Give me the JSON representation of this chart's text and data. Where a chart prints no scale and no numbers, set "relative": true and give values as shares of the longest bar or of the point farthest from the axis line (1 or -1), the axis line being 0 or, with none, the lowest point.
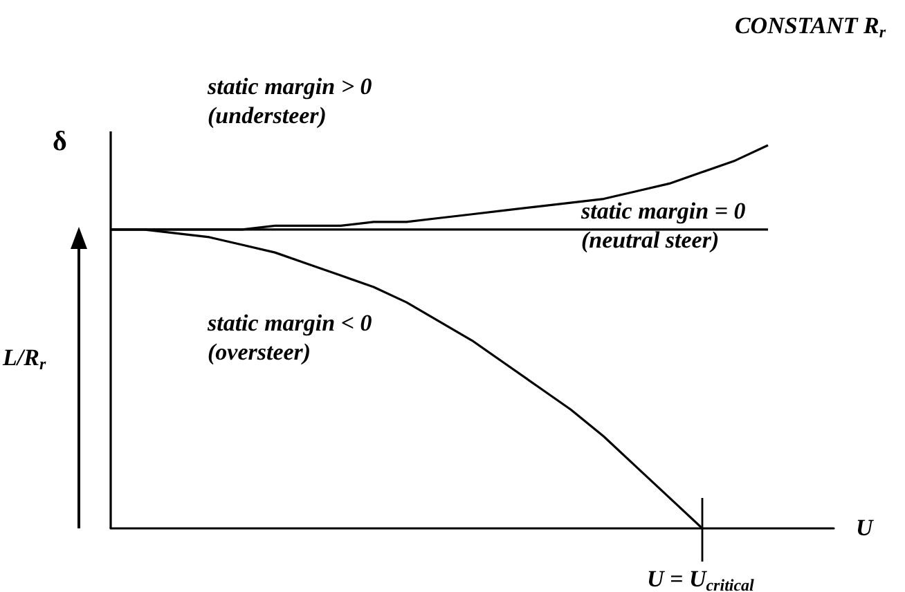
{
  "chart_data": {
    "type": "line",
    "relative": true,
    "title": "CONSTANT R$_{r}$",
    "xlabel": "U",
    "ylabel": "δ",
    "categories": [
      null,
      null,
      null,
      null,
      null,
      null,
      null,
      null,
      null,
      null,
      null,
      null,
      null,
      null,
      null,
      null,
      null,
      null,
      null,
      null,
      null,
      null,
      null
    ],
    "series": [
      {
        "color": "#000000",
        "values": [
          0.78,
          0.78,
          0.78,
          0.78,
          0.78,
          0.79,
          0.79,
          0.79,
          0.8,
          0.8,
          0.81,
          0.82,
          0.83,
          0.84,
          0.85,
          0.86,
          0.88,
          0.9,
          0.93,
          0.96,
          1,
          null,
          null
        ]
      },
      {
        "color": "#000000",
        "values": [
          0.78,
          0.78,
          0.78,
          0.78,
          0.78,
          0.78,
          0.78,
          0.78,
          0.78,
          0.78,
          0.78,
          0.78,
          0.78,
          0.78,
          0.78,
          0.78,
          0.78,
          0.78,
          0.78,
          0.78,
          0.78,
          null,
          null
        ]
      },
      {
        "color": "#000000",
        "values": [
          0.78,
          0.78,
          0.77,
          0.76,
          0.74,
          0.72,
          0.69,
          0.66,
          0.63,
          0.59,
          0.54,
          0.49,
          0.43,
          0.37,
          0.31,
          0.24,
          0.16,
          0.08,
          0,
          null,
          null,
          null,
          null
        ]
      }
    ],
    "annotations": [
      "static margin > 0\n(understeer)",
      "static margin = 0\n(neutral steer)",
      "static margin < 0\n(oversteer)",
      "U = U$_{critical}$",
      "L/R$_{r}$"
    ],
    "grid": false,
    "marker": "none",
    "line_style": "solid"
  }
}
